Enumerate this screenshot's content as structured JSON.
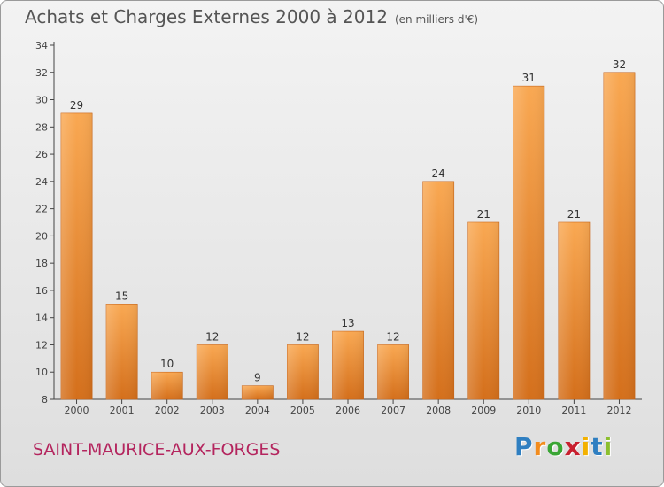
{
  "header": {
    "title": "Achats et Charges Externes 2000 à 2012",
    "unit": "(en milliers d'€)"
  },
  "footer": {
    "commune": "SAINT-MAURICE-AUX-FORGES",
    "logo_letters": [
      "P",
      "r",
      "o",
      "x",
      "i",
      "t",
      "i"
    ],
    "logo_colors": [
      "#2f7fc1",
      "#f28c1e",
      "#3aa535",
      "#c8202f",
      "#f3b100",
      "#2f7fc1",
      "#8cbf2e"
    ]
  },
  "colors": {
    "bar_light": "#f7a54d",
    "bar_dark": "#d9731c",
    "axis": "#444444",
    "grid": "#c8c8c8"
  },
  "chart_data": {
    "type": "bar",
    "title": "Achats et Charges Externes 2000 à 2012",
    "categories": [
      "2000",
      "2001",
      "2002",
      "2003",
      "2004",
      "2005",
      "2006",
      "2007",
      "2008",
      "2009",
      "2010",
      "2011",
      "2012"
    ],
    "values": [
      29,
      15,
      10,
      12,
      9,
      12,
      13,
      12,
      24,
      21,
      31,
      21,
      32
    ],
    "ylim": [
      8,
      34
    ],
    "yticks": [
      8,
      10,
      12,
      14,
      16,
      18,
      20,
      22,
      24,
      26,
      28,
      30,
      32,
      34
    ],
    "xlabel": "",
    "ylabel": "",
    "grid": false,
    "data_labels": true
  }
}
